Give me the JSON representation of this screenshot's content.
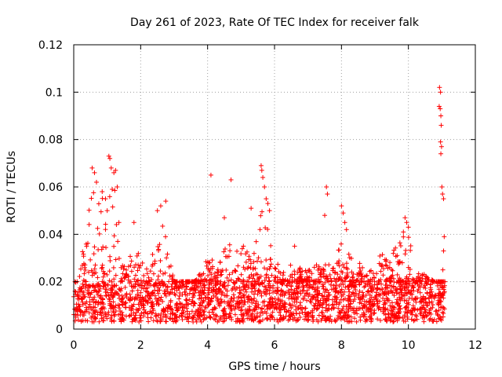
{
  "chart_data": {
    "type": "scatter",
    "title": "Day 261 of 2023, Rate Of TEC Index for receiver falk",
    "xlabel": "GPS time / hours",
    "ylabel": "ROTI / TECUs",
    "xlim": [
      0,
      12
    ],
    "ylim": [
      0,
      0.12
    ],
    "x_ticks": [
      "0",
      "2",
      "4",
      "6",
      "8",
      "10",
      "12"
    ],
    "y_ticks": [
      "0",
      "0.02",
      "0.04",
      "0.06",
      "0.08",
      "0.1",
      "0.12"
    ],
    "grid": true,
    "marker": "+",
    "color": "#ff0000",
    "outliers": [
      {
        "x": 0.55,
        "y": 0.068
      },
      {
        "x": 0.62,
        "y": 0.066
      },
      {
        "x": 0.68,
        "y": 0.062
      },
      {
        "x": 0.85,
        "y": 0.058
      },
      {
        "x": 1.05,
        "y": 0.073
      },
      {
        "x": 1.08,
        "y": 0.072
      },
      {
        "x": 1.12,
        "y": 0.068
      },
      {
        "x": 1.2,
        "y": 0.066
      },
      {
        "x": 1.25,
        "y": 0.067
      },
      {
        "x": 1.3,
        "y": 0.06
      },
      {
        "x": 1.15,
        "y": 0.059
      },
      {
        "x": 0.95,
        "y": 0.055
      },
      {
        "x": 1.0,
        "y": 0.05
      },
      {
        "x": 1.35,
        "y": 0.045
      },
      {
        "x": 1.8,
        "y": 0.045
      },
      {
        "x": 2.5,
        "y": 0.05
      },
      {
        "x": 2.6,
        "y": 0.052
      },
      {
        "x": 2.75,
        "y": 0.054
      },
      {
        "x": 4.1,
        "y": 0.065
      },
      {
        "x": 4.5,
        "y": 0.047
      },
      {
        "x": 4.7,
        "y": 0.063
      },
      {
        "x": 5.3,
        "y": 0.051
      },
      {
        "x": 5.6,
        "y": 0.069
      },
      {
        "x": 5.62,
        "y": 0.067
      },
      {
        "x": 5.65,
        "y": 0.064
      },
      {
        "x": 5.7,
        "y": 0.06
      },
      {
        "x": 5.75,
        "y": 0.055
      },
      {
        "x": 5.8,
        "y": 0.053
      },
      {
        "x": 5.85,
        "y": 0.05
      },
      {
        "x": 6.6,
        "y": 0.035
      },
      {
        "x": 7.55,
        "y": 0.06
      },
      {
        "x": 7.58,
        "y": 0.057
      },
      {
        "x": 7.5,
        "y": 0.048
      },
      {
        "x": 8.0,
        "y": 0.052
      },
      {
        "x": 8.05,
        "y": 0.049
      },
      {
        "x": 8.1,
        "y": 0.045
      },
      {
        "x": 8.15,
        "y": 0.042
      },
      {
        "x": 9.9,
        "y": 0.047
      },
      {
        "x": 9.95,
        "y": 0.045
      },
      {
        "x": 10.0,
        "y": 0.043
      },
      {
        "x": 9.85,
        "y": 0.041
      },
      {
        "x": 10.93,
        "y": 0.102
      },
      {
        "x": 10.96,
        "y": 0.1
      },
      {
        "x": 10.92,
        "y": 0.094
      },
      {
        "x": 10.95,
        "y": 0.093
      },
      {
        "x": 10.97,
        "y": 0.09
      },
      {
        "x": 10.98,
        "y": 0.086
      },
      {
        "x": 10.96,
        "y": 0.079
      },
      {
        "x": 10.99,
        "y": 0.077
      },
      {
        "x": 10.97,
        "y": 0.074
      },
      {
        "x": 11.0,
        "y": 0.06
      },
      {
        "x": 11.02,
        "y": 0.057
      },
      {
        "x": 11.05,
        "y": 0.055
      },
      {
        "x": 11.07,
        "y": 0.039
      },
      {
        "x": 11.05,
        "y": 0.033
      },
      {
        "x": 11.03,
        "y": 0.025
      }
    ],
    "envelope": [
      {
        "x": 0.0,
        "y": 0.015
      },
      {
        "x": 0.2,
        "y": 0.03
      },
      {
        "x": 0.4,
        "y": 0.045
      },
      {
        "x": 0.6,
        "y": 0.065
      },
      {
        "x": 0.8,
        "y": 0.05
      },
      {
        "x": 1.0,
        "y": 0.07
      },
      {
        "x": 1.2,
        "y": 0.065
      },
      {
        "x": 1.4,
        "y": 0.03
      },
      {
        "x": 1.6,
        "y": 0.025
      },
      {
        "x": 1.8,
        "y": 0.04
      },
      {
        "x": 2.0,
        "y": 0.03
      },
      {
        "x": 2.2,
        "y": 0.025
      },
      {
        "x": 2.4,
        "y": 0.035
      },
      {
        "x": 2.6,
        "y": 0.05
      },
      {
        "x": 2.8,
        "y": 0.035
      },
      {
        "x": 3.0,
        "y": 0.02
      },
      {
        "x": 3.2,
        "y": 0.02
      },
      {
        "x": 3.4,
        "y": 0.02
      },
      {
        "x": 3.6,
        "y": 0.02
      },
      {
        "x": 3.8,
        "y": 0.025
      },
      {
        "x": 4.0,
        "y": 0.03
      },
      {
        "x": 4.2,
        "y": 0.03
      },
      {
        "x": 4.4,
        "y": 0.03
      },
      {
        "x": 4.6,
        "y": 0.04
      },
      {
        "x": 4.8,
        "y": 0.03
      },
      {
        "x": 5.0,
        "y": 0.04
      },
      {
        "x": 5.2,
        "y": 0.035
      },
      {
        "x": 5.4,
        "y": 0.035
      },
      {
        "x": 5.6,
        "y": 0.06
      },
      {
        "x": 5.8,
        "y": 0.05
      },
      {
        "x": 6.0,
        "y": 0.03
      },
      {
        "x": 6.2,
        "y": 0.025
      },
      {
        "x": 6.4,
        "y": 0.025
      },
      {
        "x": 6.6,
        "y": 0.03
      },
      {
        "x": 6.8,
        "y": 0.025
      },
      {
        "x": 7.0,
        "y": 0.025
      },
      {
        "x": 7.2,
        "y": 0.03
      },
      {
        "x": 7.4,
        "y": 0.025
      },
      {
        "x": 7.6,
        "y": 0.03
      },
      {
        "x": 7.8,
        "y": 0.025
      },
      {
        "x": 8.0,
        "y": 0.04
      },
      {
        "x": 8.2,
        "y": 0.035
      },
      {
        "x": 8.4,
        "y": 0.025
      },
      {
        "x": 8.6,
        "y": 0.03
      },
      {
        "x": 8.8,
        "y": 0.025
      },
      {
        "x": 9.0,
        "y": 0.03
      },
      {
        "x": 9.2,
        "y": 0.035
      },
      {
        "x": 9.4,
        "y": 0.03
      },
      {
        "x": 9.6,
        "y": 0.035
      },
      {
        "x": 9.8,
        "y": 0.04
      },
      {
        "x": 10.0,
        "y": 0.04
      },
      {
        "x": 10.2,
        "y": 0.03
      },
      {
        "x": 10.4,
        "y": 0.025
      },
      {
        "x": 10.6,
        "y": 0.022
      },
      {
        "x": 10.8,
        "y": 0.02
      },
      {
        "x": 11.0,
        "y": 0.02
      },
      {
        "x": 11.1,
        "y": 0.018
      }
    ],
    "dense_band": {
      "x_min": 0.0,
      "x_max": 11.1,
      "y_min": 0.003,
      "y_max": 0.02
    }
  }
}
